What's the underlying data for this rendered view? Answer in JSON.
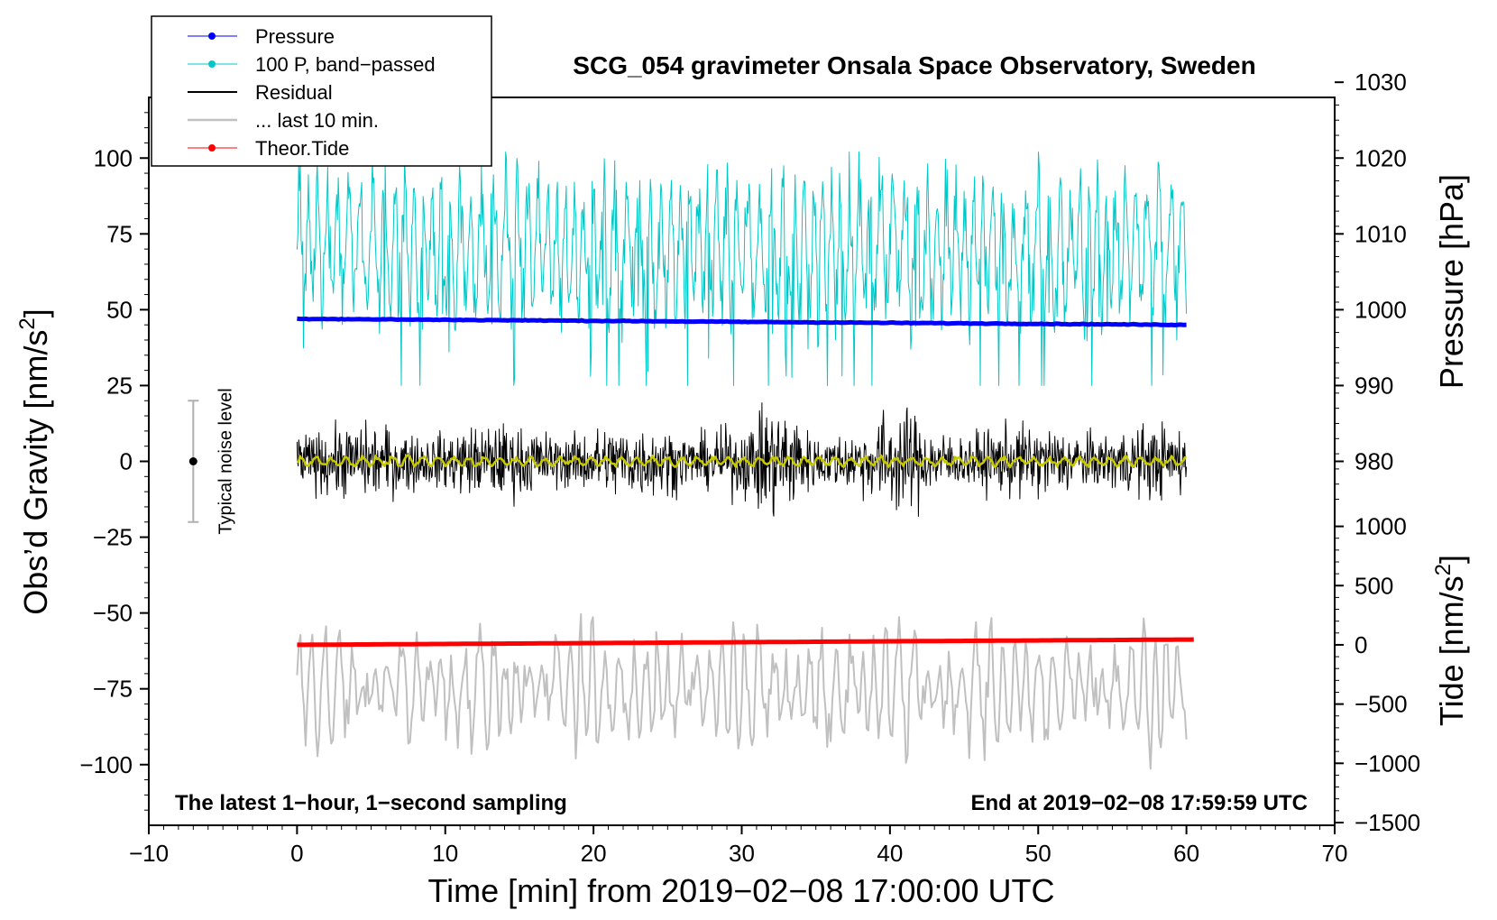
{
  "chart_data": {
    "type": "line",
    "title": "SCG_054 gravimeter Onsala Space Observatory, Sweden",
    "xlabel": "Time [min] from 2019−02−08 17:00:00 UTC",
    "ylabel_left": "Obs’d Gravity [nm/s",
    "ylabel_left_sup": "2",
    "ylabel_left_end": "]",
    "ylabel_right_top": "Pressure [hPa]",
    "ylabel_right_bottom": "Tide [nm/s",
    "ylabel_right_bottom_sup": "2",
    "ylabel_right_bottom_end": "]",
    "xlim": [
      -10,
      70
    ],
    "ylim_left": [
      -120,
      120
    ],
    "x_ticks": [
      -10,
      0,
      10,
      20,
      30,
      40,
      50,
      60,
      70
    ],
    "x_tick_labels": [
      "−10",
      "0",
      "10",
      "20",
      "30",
      "40",
      "50",
      "60",
      "70"
    ],
    "y_left_ticks": [
      100,
      75,
      50,
      25,
      0,
      -25,
      -50,
      -75,
      -100
    ],
    "y_left_tick_labels": [
      "100",
      "75",
      "50",
      "25",
      "0",
      "−25",
      "−50",
      "−75",
      "−100"
    ],
    "pressure_axis": {
      "ticks": [
        1030,
        1020,
        1010,
        1000,
        990,
        980
      ],
      "tick_labels": [
        "1030",
        "1020",
        "1010",
        "1000",
        "990",
        "980"
      ],
      "ref_value": 1000,
      "ref_gravity": 50,
      "hpa_per_gravity_unit": 0.4
    },
    "tide_axis": {
      "ticks": [
        1000,
        500,
        0,
        -500,
        -1000,
        -1500
      ],
      "tick_labels": [
        "1000",
        "500",
        "0",
        "−500",
        "−1000",
        "−1500"
      ],
      "ref_value": 0,
      "ref_gravity": -60.5,
      "nms2_per_gravity_unit": 25.6
    },
    "annotation_left": "The latest 1−hour, 1−second sampling",
    "annotation_right": "End at 2019−02−08 17:59:59 UTC",
    "noise_indicator": {
      "label": "Typical noise level",
      "x": -7,
      "center": 0,
      "half_range": 20
    },
    "legend": [
      {
        "label": "Pressure",
        "color": "#0000ff",
        "style": "line-dot"
      },
      {
        "label": "100 P, band−passed",
        "color": "#00c8c8",
        "style": "line-dot"
      },
      {
        "label": "Residual",
        "color": "#000000",
        "style": "line"
      },
      {
        "label": "... last 10 min.",
        "color": "#c0c0c0",
        "style": "line"
      },
      {
        "label": "Theor.Tide",
        "color": "#ff0000",
        "style": "line-dot"
      }
    ],
    "series": [
      {
        "name": "Pressure",
        "color": "#0000ff",
        "x_range": [
          0,
          60
        ],
        "start_hpa": 998.8,
        "end_hpa": 998.0,
        "units": "hPa"
      },
      {
        "name": "100 P, band−passed",
        "color": "#00c8c8",
        "x_range": [
          0,
          60
        ],
        "center": 70,
        "amplitude": 25,
        "units": "nm/s2 (left axis)"
      },
      {
        "name": "Residual",
        "color": "#000000",
        "x_range": [
          0,
          60
        ],
        "center": 0,
        "amplitude": 20,
        "units": "nm/s2 (left axis)"
      },
      {
        "name": "Residual smoothed",
        "color": "#c8c800",
        "x_range": [
          0,
          60
        ],
        "center": 0,
        "amplitude": 2,
        "units": "nm/s2 (left axis)"
      },
      {
        "name": "... last 10 min.",
        "color": "#c0c0c0",
        "x_range": [
          0,
          60
        ],
        "center": -75,
        "amplitude": 25,
        "units": "nm/s2 (left axis)"
      },
      {
        "name": "Theor.Tide",
        "color": "#ff0000",
        "x_range": [
          0,
          60.5
        ],
        "start_nms2": 0,
        "end_nms2": 45,
        "units": "nm/s2 (tide axis)"
      }
    ]
  }
}
